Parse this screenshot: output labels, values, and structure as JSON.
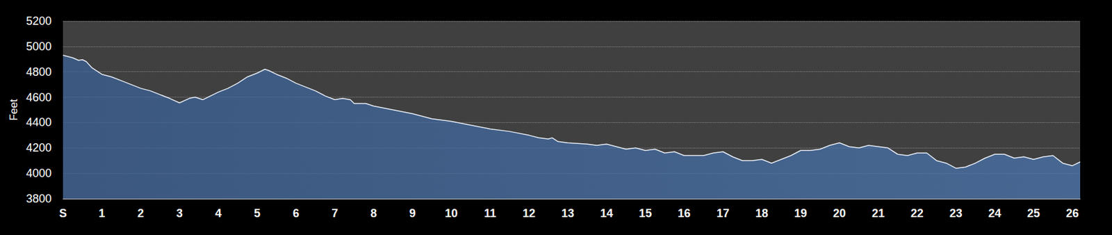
{
  "chart_data": {
    "type": "area",
    "y_label": "Feet",
    "color": "#4a78b5",
    "grid": true,
    "x": [
      0,
      0.25,
      0.4,
      0.5,
      0.6,
      0.75,
      1,
      1.25,
      1.5,
      1.75,
      2,
      2.25,
      2.5,
      2.75,
      3,
      3.25,
      3.4,
      3.6,
      3.8,
      4,
      4.25,
      4.5,
      4.75,
      5,
      5.2,
      5.3,
      5.5,
      5.75,
      6,
      6.25,
      6.5,
      6.75,
      7,
      7.2,
      7.4,
      7.5,
      7.8,
      8,
      8.5,
      9,
      9.5,
      10,
      10.5,
      11,
      11.5,
      12,
      12.25,
      12.5,
      12.6,
      12.75,
      13,
      13.5,
      13.75,
      14,
      14.25,
      14.5,
      14.75,
      15,
      15.25,
      15.5,
      15.75,
      16,
      16.5,
      16.75,
      17,
      17.25,
      17.5,
      17.75,
      18,
      18.25,
      18.5,
      18.75,
      19,
      19.25,
      19.5,
      19.75,
      20,
      20.25,
      20.5,
      20.75,
      21,
      21.25,
      21.5,
      21.75,
      22,
      22.25,
      22.5,
      22.75,
      23,
      23.25,
      23.5,
      23.75,
      24,
      24.25,
      24.5,
      24.75,
      25,
      25.25,
      25.5,
      25.75,
      26,
      26.2
    ],
    "values": [
      4930,
      4910,
      4890,
      4895,
      4880,
      4830,
      4780,
      4760,
      4730,
      4700,
      4670,
      4650,
      4620,
      4590,
      4555,
      4590,
      4600,
      4580,
      4610,
      4640,
      4670,
      4710,
      4760,
      4790,
      4820,
      4810,
      4780,
      4750,
      4710,
      4680,
      4650,
      4610,
      4580,
      4590,
      4580,
      4550,
      4550,
      4530,
      4500,
      4470,
      4430,
      4410,
      4380,
      4350,
      4330,
      4300,
      4280,
      4270,
      4280,
      4250,
      4240,
      4230,
      4220,
      4230,
      4210,
      4190,
      4200,
      4180,
      4190,
      4160,
      4170,
      4140,
      4140,
      4160,
      4170,
      4130,
      4100,
      4100,
      4110,
      4080,
      4110,
      4140,
      4180,
      4180,
      4190,
      4220,
      4240,
      4210,
      4200,
      4220,
      4210,
      4200,
      4150,
      4140,
      4160,
      4160,
      4100,
      4080,
      4040,
      4050,
      4080,
      4120,
      4150,
      4150,
      4120,
      4130,
      4110,
      4130,
      4140,
      4080,
      4060,
      4090
    ],
    "xlim": [
      0,
      26.2
    ],
    "xticks": [
      {
        "value": 0,
        "label": "S"
      },
      1,
      2,
      3,
      4,
      5,
      6,
      7,
      8,
      9,
      10,
      11,
      12,
      13,
      14,
      15,
      16,
      17,
      18,
      19,
      20,
      21,
      22,
      23,
      24,
      25,
      26
    ],
    "ylim": [
      3800,
      5200
    ],
    "yticks": [
      3800,
      4000,
      4200,
      4400,
      4600,
      4800,
      5000,
      5200
    ]
  }
}
